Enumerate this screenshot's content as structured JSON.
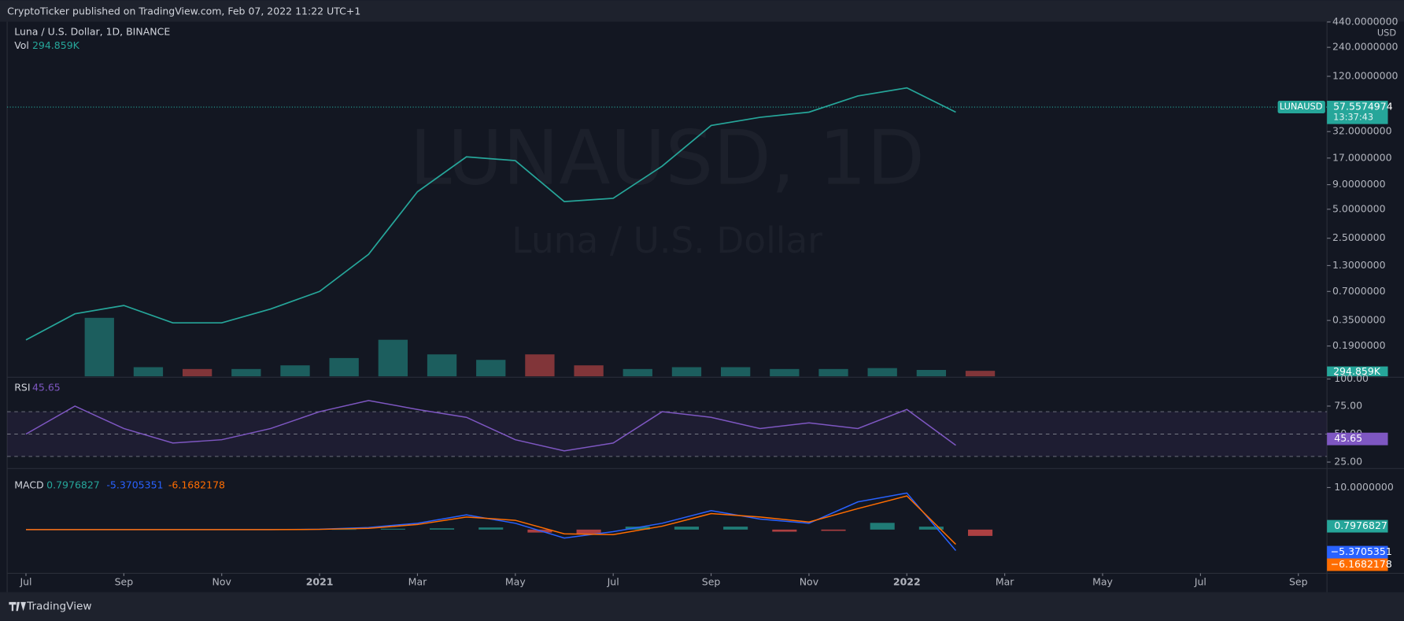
{
  "header": {
    "title": "CryptoTicker published on TradingView.com, Feb 07, 2022 11:22 UTC+1"
  },
  "footer": {
    "brand": "TradingView"
  },
  "chart_data": [
    {
      "type": "line",
      "title": "Luna / U.S. Dollar, 1D, BINANCE",
      "watermark": "LUNAUSD, 1D",
      "watermark_subtitle": "Luna / U.S. Dollar",
      "currency": "USD",
      "log_scale": true,
      "x": [
        "2020-07",
        "2020-08",
        "2020-09",
        "2020-10",
        "2020-11",
        "2020-12",
        "2021-01",
        "2021-02",
        "2021-03",
        "2021-04",
        "2021-05",
        "2021-06",
        "2021-07",
        "2021-08",
        "2021-09",
        "2021-10",
        "2021-11",
        "2021-12",
        "2022-01",
        "2022-02"
      ],
      "xticks": [
        {
          "value": "2020-07",
          "label": "Jul"
        },
        {
          "value": "2020-09",
          "label": "Sep"
        },
        {
          "value": "2020-11",
          "label": "Nov"
        },
        {
          "value": "2021-01",
          "label": "2021"
        },
        {
          "value": "2021-03",
          "label": "Mar"
        },
        {
          "value": "2021-05",
          "label": "May"
        },
        {
          "value": "2021-07",
          "label": "Jul"
        },
        {
          "value": "2021-09",
          "label": "Sep"
        },
        {
          "value": "2021-11",
          "label": "Nov"
        },
        {
          "value": "2022-01",
          "label": "2022"
        },
        {
          "value": "2022-03",
          "label": "Mar"
        },
        {
          "value": "2022-05",
          "label": "May"
        },
        {
          "value": "2022-07",
          "label": "Jul"
        },
        {
          "value": "2022-09",
          "label": "Sep"
        }
      ],
      "series": [
        {
          "name": "LUNAUSD",
          "color": "#26a69a",
          "values": [
            0.22,
            0.41,
            0.5,
            0.33,
            0.33,
            0.46,
            0.7,
            1.7,
            7.6,
            17.5,
            16,
            6,
            6.5,
            14,
            37,
            45,
            51,
            75,
            91,
            51
          ]
        }
      ],
      "last_price": 57.5574974,
      "last_price_label": "57.5574974",
      "countdown": "13:37:43",
      "ylim": [
        0.092,
        443
      ],
      "yticks": [
        {
          "value": 440,
          "label": "440.0000000"
        },
        {
          "value": 240,
          "label": "240.0000000"
        },
        {
          "value": 120,
          "label": "120.0000000"
        },
        {
          "value": 32,
          "label": "32.0000000"
        },
        {
          "value": 17,
          "label": "17.0000000"
        },
        {
          "value": 9,
          "label": "9.0000000"
        },
        {
          "value": 5,
          "label": "5.0000000"
        },
        {
          "value": 2.5,
          "label": "2.5000000"
        },
        {
          "value": 1.3,
          "label": "1.3000000"
        },
        {
          "value": 0.7,
          "label": "0.7000000"
        },
        {
          "value": 0.35,
          "label": "0.3500000"
        },
        {
          "value": 0.19,
          "label": "0.1900000"
        }
      ],
      "volume": {
        "name": "Vol",
        "values": [
          0,
          3200000,
          500000,
          400000,
          400000,
          600000,
          1000000,
          2000000,
          1200000,
          900000,
          1200000,
          600000,
          400000,
          500000,
          500000,
          400000,
          400000,
          450000,
          350000,
          300000
        ],
        "last": 294859,
        "last_label": "294.859K",
        "ylim": [
          0,
          19400000
        ],
        "up_color": "#26a69a",
        "down_color": "#ef5350"
      }
    },
    {
      "type": "line",
      "series": [
        {
          "name": "RSI",
          "color": "#7e57c2",
          "values": [
            50,
            75,
            55,
            42,
            45,
            55,
            70,
            80,
            72,
            65,
            45,
            35,
            42,
            70,
            65,
            55,
            60,
            55,
            72,
            40
          ]
        }
      ],
      "last": 45.65,
      "levels": [
        70,
        50,
        30
      ],
      "ylim": [
        20,
        100
      ],
      "yticks": [
        {
          "value": 100,
          "label": "100.00"
        },
        {
          "value": 75,
          "label": "75.00"
        },
        {
          "value": 50,
          "label": "50.00"
        },
        {
          "value": 25,
          "label": "25.00"
        }
      ]
    },
    {
      "type": "macd",
      "title": "MACD",
      "histogram": {
        "color": "#26a69a",
        "down_color": "#ef5350",
        "values": [
          0,
          0,
          0,
          0,
          0,
          0,
          0.05,
          0.2,
          0.3,
          0.5,
          -0.7,
          -1.0,
          0.7,
          0.7,
          0.7,
          -0.5,
          -0.3,
          1.6,
          0.7,
          -1.5
        ],
        "last": 0.7976827
      },
      "macd": {
        "color": "#2962ff",
        "values": [
          0,
          0,
          0,
          0,
          0,
          0,
          0.1,
          0.5,
          1.5,
          3.5,
          1.5,
          -2,
          -0.5,
          1.5,
          4.5,
          2.5,
          1.5,
          6.6,
          8.7,
          -5.0
        ],
        "last": -5.3705351,
        "axis_label": "−5.3705351"
      },
      "signal": {
        "color": "#ff6d00",
        "values": [
          0,
          0,
          0,
          0,
          0,
          0,
          0.05,
          0.3,
          1.2,
          3.0,
          2.2,
          -1.0,
          -1.2,
          0.8,
          3.8,
          3.0,
          1.8,
          5.0,
          8.0,
          -3.5
        ],
        "last": -6.1682178,
        "axis_label": "−6.1682178"
      },
      "ylim": [
        -10.4,
        14.3
      ],
      "yticks": [
        {
          "value": 10,
          "label": "10.0000000"
        }
      ]
    }
  ]
}
